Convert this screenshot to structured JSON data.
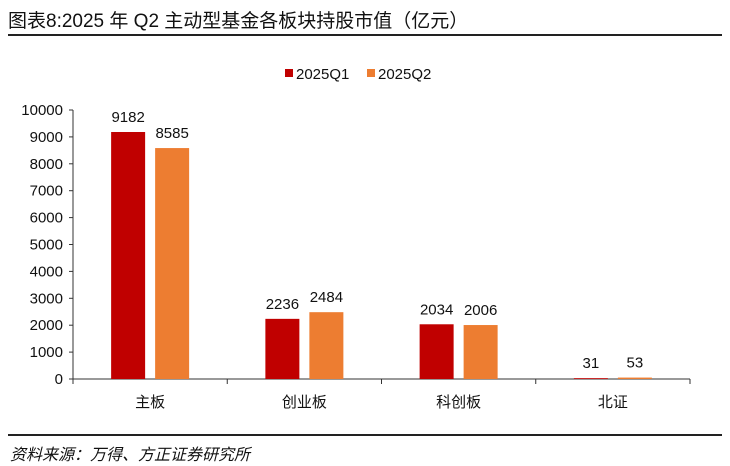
{
  "title": "图表8:2025 年 Q2 主动型基金各板块持股市值（亿元）",
  "source": "资料来源：万得、方正证券研究所",
  "colors": {
    "2025Q1": "#C00000",
    "2025Q2": "#ED7D31"
  },
  "chart_data": {
    "type": "bar",
    "title": "图表8:2025 年 Q2 主动型基金各板块持股市值（亿元）",
    "categories": [
      "主板",
      "创业板",
      "科创板",
      "北证"
    ],
    "series": [
      {
        "name": "2025Q1",
        "values": [
          9182,
          2236,
          2034,
          31
        ]
      },
      {
        "name": "2025Q2",
        "values": [
          8585,
          2484,
          2006,
          53
        ]
      }
    ],
    "ylim": [
      0,
      10000
    ],
    "yticks": [
      0,
      1000,
      2000,
      3000,
      4000,
      5000,
      6000,
      7000,
      8000,
      9000,
      10000
    ],
    "xlabel": "",
    "ylabel": "",
    "grid": false,
    "legend": "top-center",
    "data_labels": true
  }
}
